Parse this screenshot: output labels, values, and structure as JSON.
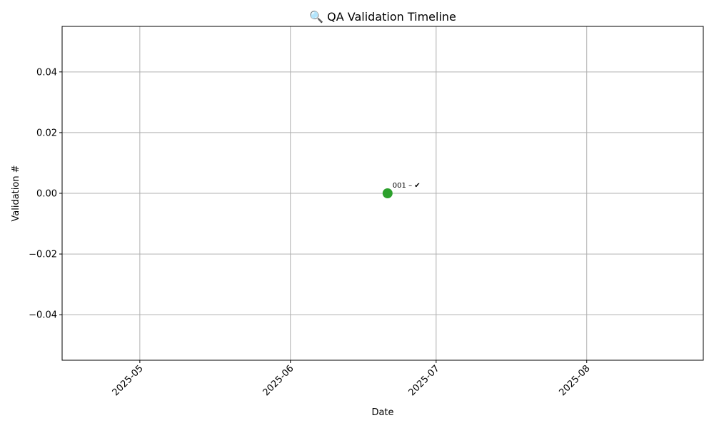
{
  "chart_data": {
    "type": "scatter",
    "title": "🔍 QA Validation Timeline",
    "xlabel": "Date",
    "ylabel": "Validation #",
    "x_ticks": [
      "2025-05",
      "2025-06",
      "2025-07",
      "2025-08"
    ],
    "y_ticks": [
      "0.04",
      "0.02",
      "0.00",
      "−0.02",
      "−0.04"
    ],
    "xlim": [
      "2025-04-15",
      "2025-08-25"
    ],
    "ylim": [
      -0.055,
      0.055
    ],
    "grid": true,
    "points": [
      {
        "x": "2025-06-21",
        "y": 0,
        "label": "001 – ✔",
        "color": "#2ca02c"
      }
    ]
  }
}
